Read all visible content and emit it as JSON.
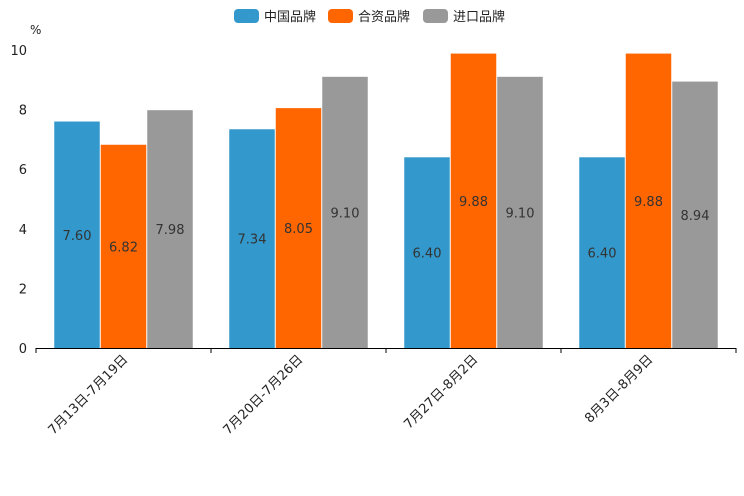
{
  "chart_data": {
    "type": "bar",
    "ylabel": "%",
    "ylim": [
      0,
      10
    ],
    "yticks": [
      0,
      2,
      4,
      6,
      8,
      10
    ],
    "categories": [
      "7月13日-7月19日",
      "7月20日-7月26日",
      "7月27日-8月2日",
      "8月3日-8月9日"
    ],
    "series": [
      {
        "name": "中国品牌",
        "color": "#3399cc",
        "values": [
          7.6,
          7.34,
          6.4,
          6.4
        ],
        "labels": [
          "7.60",
          "7.34",
          "6.40",
          "6.40"
        ]
      },
      {
        "name": "合资品牌",
        "color": "#ff6600",
        "values": [
          6.82,
          8.05,
          9.88,
          9.88
        ],
        "labels": [
          "6.82",
          "8.05",
          "9.88",
          "9.88"
        ]
      },
      {
        "name": "进口品牌",
        "color": "#999999",
        "values": [
          7.98,
          9.1,
          9.1,
          8.94
        ],
        "labels": [
          "7.98",
          "9.10",
          "9.10",
          "8.94"
        ]
      }
    ],
    "legend_position": "top-center",
    "grid": false
  }
}
